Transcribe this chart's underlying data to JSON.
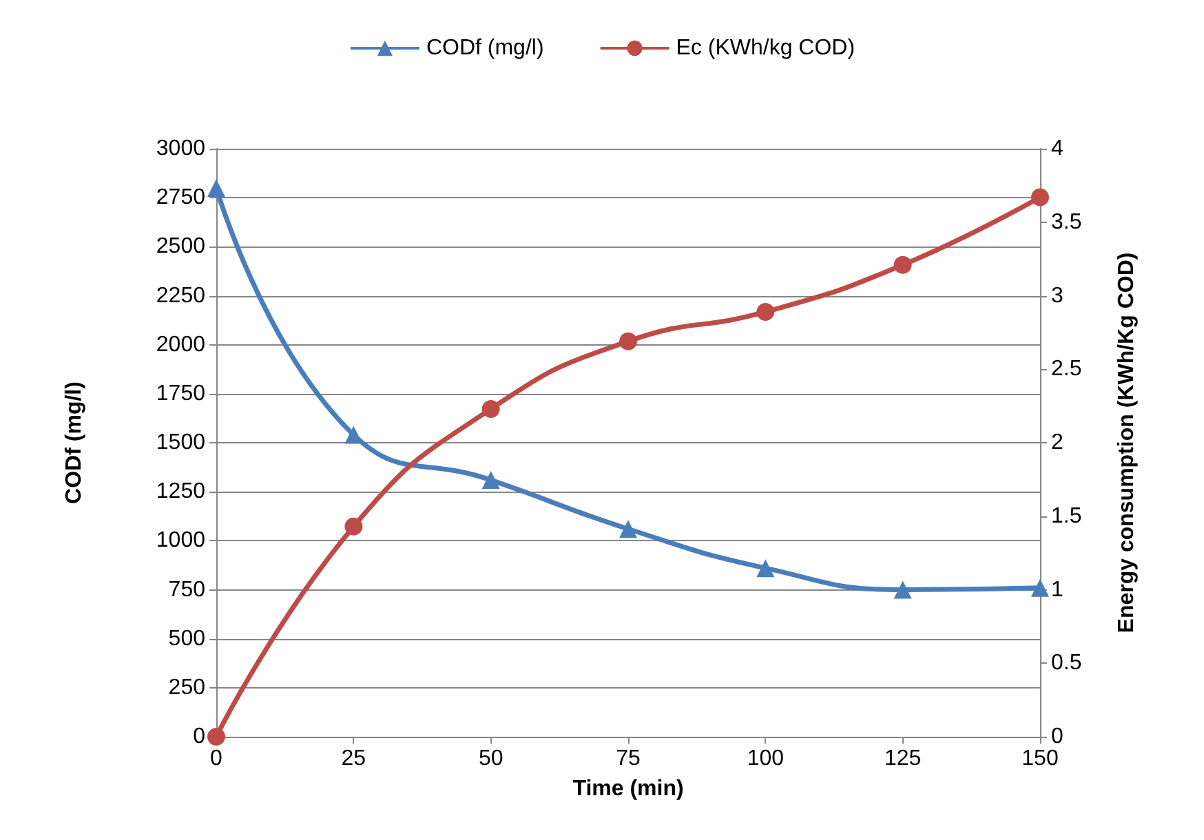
{
  "chart_data": {
    "type": "line",
    "xlabel": "Time (min)",
    "ylabel": "CODf (mg/l)",
    "y2label": "Energy consumption (KWh/Kg COD)",
    "x": [
      0,
      25,
      50,
      75,
      100,
      125,
      150
    ],
    "xlim": [
      0,
      150
    ],
    "xticks": [
      0,
      25,
      50,
      75,
      100,
      125,
      150
    ],
    "ylim": [
      0,
      3000
    ],
    "yticks": [
      0,
      250,
      500,
      750,
      1000,
      1250,
      1500,
      1750,
      2000,
      2250,
      2500,
      2750,
      3000
    ],
    "y2lim": [
      0,
      4
    ],
    "y2ticks": [
      0,
      0.5,
      1,
      1.5,
      2,
      2.5,
      3,
      3.5,
      4
    ],
    "series": [
      {
        "name": "CODf (mg/l)",
        "color": "#4a7ebb",
        "marker": "triangle",
        "values": [
          2800,
          1540,
          1310,
          1060,
          860,
          750,
          760
        ]
      },
      {
        "name": "Ec (KWh/kg COD)",
        "color": "#be4b48",
        "marker": "circle",
        "axis": "y2",
        "values": [
          0,
          1.43,
          2.23,
          2.69,
          2.89,
          3.21,
          3.67
        ]
      }
    ],
    "grid": "y",
    "legend": "top",
    "line_style": "solid"
  }
}
